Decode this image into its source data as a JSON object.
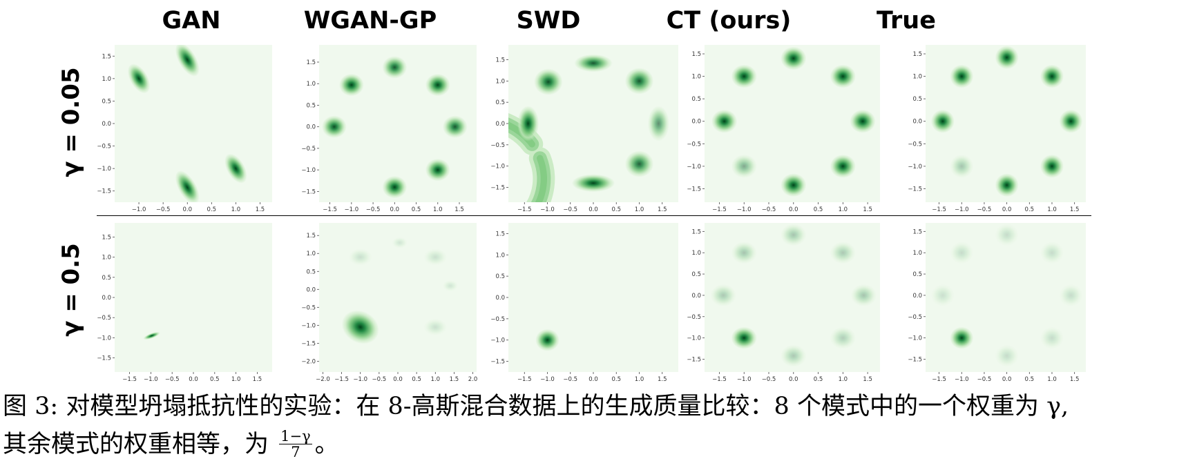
{
  "columns": [
    "GAN",
    "WGAN-GP",
    "SWD",
    "CT (ours)",
    "True"
  ],
  "rows": [
    "γ = 0.05",
    "γ = 0.5"
  ],
  "colors": {
    "background": "#f0f9ee",
    "light": "#c7e9c0",
    "mid": "#74c476",
    "dark": "#238b45",
    "darkest": "#00441b"
  },
  "caption": {
    "label": "图 3:",
    "line1": "对模型坍塌抵抗性的实验：在 8-高斯混合数据上的生成质量比较：8 个模式中的一个权重为 γ,",
    "line2_prefix": "其余模式的权重相等，为",
    "frac_num": "1−γ",
    "frac_den": "7",
    "line2_suffix": "。"
  },
  "chart_data": [
    {
      "type": "heatmap",
      "title": "GAN",
      "row": "γ = 0.05",
      "x_ticks": [
        "−1.0",
        "−0.5",
        "0.0",
        "0.5",
        "1.0",
        "1.5"
      ],
      "y_ticks": [
        "1.5",
        "1.0",
        "0.5",
        "0.0",
        "−0.5",
        "−1.0",
        "−1.5"
      ],
      "xlim": [
        -1.5,
        1.75
      ],
      "ylim": [
        -1.75,
        1.75
      ],
      "modes": [
        {
          "x": -1.0,
          "y": 1.0,
          "w": 1,
          "sx": 0.07,
          "sy": 0.14,
          "rot": -30
        },
        {
          "x": 0.0,
          "y": 1.42,
          "w": 1,
          "sx": 0.07,
          "sy": 0.16,
          "rot": -30
        },
        {
          "x": 1.0,
          "y": -1.0,
          "w": 1,
          "sx": 0.07,
          "sy": 0.14,
          "rot": -30
        },
        {
          "x": 0.0,
          "y": -1.42,
          "w": 1,
          "sx": 0.07,
          "sy": 0.16,
          "rot": -30
        }
      ]
    },
    {
      "type": "heatmap",
      "title": "WGAN-GP",
      "row": "γ = 0.05",
      "x_ticks": [
        "−1.5",
        "−1.0",
        "−0.5",
        "0.0",
        "0.5",
        "1.0",
        "1.5"
      ],
      "y_ticks": [
        "1.5",
        "1.0",
        "0.5",
        "0.0",
        "−0.5",
        "−1.0",
        "−1.5"
      ],
      "xlim": [
        -1.75,
        1.9
      ],
      "ylim": [
        -1.75,
        1.9
      ],
      "modes": [
        {
          "x": 0.0,
          "y": 1.38,
          "w": 0.9,
          "sx": 0.11,
          "sy": 0.1
        },
        {
          "x": -1.0,
          "y": 0.97,
          "w": 1,
          "sx": 0.11,
          "sy": 0.1
        },
        {
          "x": 1.0,
          "y": 0.97,
          "w": 1,
          "sx": 0.11,
          "sy": 0.1
        },
        {
          "x": -1.4,
          "y": 0.0,
          "w": 0.95,
          "sx": 0.11,
          "sy": 0.1
        },
        {
          "x": 1.4,
          "y": 0.0,
          "w": 0.9,
          "sx": 0.11,
          "sy": 0.1
        },
        {
          "x": 1.0,
          "y": -1.0,
          "w": 1,
          "sx": 0.11,
          "sy": 0.1
        },
        {
          "x": 0.0,
          "y": -1.4,
          "w": 1,
          "sx": 0.11,
          "sy": 0.1
        }
      ]
    },
    {
      "type": "heatmap",
      "title": "SWD",
      "row": "γ = 0.05",
      "x_ticks": [
        "−1.5",
        "−1.0",
        "−0.5",
        "0.0",
        "0.5",
        "1.0",
        "1.5"
      ],
      "y_ticks": [
        "1.5",
        "1.0",
        "0.5",
        "0.0",
        "−0.5",
        "−1.0",
        "−1.5"
      ],
      "xlim": [
        -1.85,
        1.85
      ],
      "ylim": [
        -1.85,
        1.85
      ],
      "ring": {
        "r": 1.42,
        "width": 0.2,
        "gap_deg": [
          200,
          215
        ]
      },
      "modes": [
        {
          "x": 0.0,
          "y": 1.42,
          "w": 0.9,
          "sx": 0.16,
          "sy": 0.08
        },
        {
          "x": -0.98,
          "y": 0.98,
          "w": 0.95,
          "sx": 0.12,
          "sy": 0.12
        },
        {
          "x": 1.0,
          "y": 1.0,
          "w": 0.9,
          "sx": 0.12,
          "sy": 0.12
        },
        {
          "x": -1.42,
          "y": 0.0,
          "w": 1,
          "sx": 0.09,
          "sy": 0.16
        },
        {
          "x": 1.42,
          "y": 0.0,
          "w": 0.6,
          "sx": 0.09,
          "sy": 0.16
        },
        {
          "x": 1.0,
          "y": -0.95,
          "w": 0.85,
          "sx": 0.12,
          "sy": 0.12
        },
        {
          "x": 0.0,
          "y": -1.4,
          "w": 1,
          "sx": 0.18,
          "sy": 0.08
        }
      ]
    },
    {
      "type": "heatmap",
      "title": "CT (ours)",
      "row": "γ = 0.05",
      "x_ticks": [
        "−1.5",
        "−1.0",
        "−0.5",
        "0.0",
        "0.5",
        "1.0",
        "1.5"
      ],
      "y_ticks": [
        "1.5",
        "1.0",
        "0.5",
        "0.0",
        "−0.5",
        "−1.0",
        "−1.5"
      ],
      "xlim": [
        -1.8,
        1.75
      ],
      "ylim": [
        -1.8,
        1.7
      ],
      "modes": [
        {
          "x": 0.0,
          "y": 1.4,
          "w": 1,
          "sx": 0.1,
          "sy": 0.1
        },
        {
          "x": -1.0,
          "y": 1.0,
          "w": 1,
          "sx": 0.1,
          "sy": 0.1
        },
        {
          "x": 1.0,
          "y": 1.0,
          "w": 1,
          "sx": 0.1,
          "sy": 0.1
        },
        {
          "x": -1.4,
          "y": 0.0,
          "w": 1,
          "sx": 0.1,
          "sy": 0.1
        },
        {
          "x": 1.4,
          "y": 0.0,
          "w": 1,
          "sx": 0.1,
          "sy": 0.1
        },
        {
          "x": -1.0,
          "y": -1.0,
          "w": 0.45,
          "sx": 0.1,
          "sy": 0.1
        },
        {
          "x": 1.0,
          "y": -1.0,
          "w": 1,
          "sx": 0.1,
          "sy": 0.1
        },
        {
          "x": 0.0,
          "y": -1.42,
          "w": 1,
          "sx": 0.1,
          "sy": 0.1
        }
      ]
    },
    {
      "type": "heatmap",
      "title": "True",
      "row": "γ = 0.05",
      "x_ticks": [
        "−1.5",
        "−1.0",
        "−0.5",
        "0.0",
        "0.5",
        "1.0",
        "1.5"
      ],
      "y_ticks": [
        "1.5",
        "1.0",
        "0.5",
        "0.0",
        "−0.5",
        "−1.0",
        "−1.5"
      ],
      "xlim": [
        -1.8,
        1.75
      ],
      "ylim": [
        -1.8,
        1.7
      ],
      "modes": [
        {
          "x": 0.0,
          "y": 1.42,
          "w": 1,
          "sx": 0.1,
          "sy": 0.1
        },
        {
          "x": -1.0,
          "y": 1.0,
          "w": 1,
          "sx": 0.1,
          "sy": 0.1
        },
        {
          "x": 1.0,
          "y": 1.0,
          "w": 1,
          "sx": 0.1,
          "sy": 0.1
        },
        {
          "x": -1.42,
          "y": 0.0,
          "w": 1,
          "sx": 0.1,
          "sy": 0.1
        },
        {
          "x": 1.42,
          "y": 0.0,
          "w": 1,
          "sx": 0.1,
          "sy": 0.1
        },
        {
          "x": -1.0,
          "y": -1.0,
          "w": 0.3,
          "sx": 0.1,
          "sy": 0.1
        },
        {
          "x": 1.0,
          "y": -1.0,
          "w": 1,
          "sx": 0.1,
          "sy": 0.1
        },
        {
          "x": 0.0,
          "y": -1.42,
          "w": 1,
          "sx": 0.1,
          "sy": 0.1
        }
      ]
    },
    {
      "type": "heatmap",
      "title": "GAN",
      "row": "γ = 0.5",
      "x_ticks": [
        "−1.5",
        "−1.0",
        "−0.5",
        "0.0",
        "0.5",
        "1.0",
        "1.5"
      ],
      "y_ticks": [
        "1.5",
        "1.0",
        "0.5",
        "0.0",
        "−0.5",
        "−1.0",
        "−1.5"
      ],
      "xlim": [
        -1.85,
        1.85
      ],
      "ylim": [
        -1.85,
        1.85
      ],
      "modes": [
        {
          "x": -0.98,
          "y": -0.95,
          "w": 1,
          "sx": 0.08,
          "sy": 0.025,
          "rot": -20
        }
      ]
    },
    {
      "type": "heatmap",
      "title": "WGAN-GP",
      "row": "γ = 0.5",
      "x_ticks": [
        "−2.0",
        "−1.5",
        "−1.0",
        "−0.5",
        "0.0",
        "0.5",
        "1.0",
        "1.5",
        "2.0"
      ],
      "y_ticks": [
        "1.5",
        "1.0",
        "0.5",
        "0.0",
        "−0.5",
        "−1.0",
        "−1.5",
        "−2.0"
      ],
      "xlim": [
        -2.1,
        2.1
      ],
      "ylim": [
        -2.3,
        1.85
      ],
      "modes": [
        {
          "x": -1.0,
          "y": -1.05,
          "w": 1,
          "sx": 0.2,
          "sy": 0.17,
          "rot": 30
        },
        {
          "x": -1.0,
          "y": 0.9,
          "w": 0.15,
          "sx": 0.12,
          "sy": 0.09
        },
        {
          "x": 0.05,
          "y": 1.3,
          "w": 0.12,
          "sx": 0.08,
          "sy": 0.06
        },
        {
          "x": 1.0,
          "y": 0.9,
          "w": 0.15,
          "sx": 0.12,
          "sy": 0.09
        },
        {
          "x": 1.4,
          "y": 0.1,
          "w": 0.12,
          "sx": 0.08,
          "sy": 0.06
        },
        {
          "x": 1.0,
          "y": -1.05,
          "w": 0.15,
          "sx": 0.12,
          "sy": 0.09
        }
      ]
    },
    {
      "type": "heatmap",
      "title": "SWD",
      "row": "γ = 0.5",
      "x_ticks": [
        "−1.5",
        "−1.0",
        "−0.5",
        "0.0",
        "0.5",
        "1.0",
        "1.5"
      ],
      "y_ticks": [
        "1.5",
        "1.0",
        "0.5",
        "0.0",
        "−0.5",
        "−1.0",
        "−1.5"
      ],
      "xlim": [
        -1.85,
        1.85
      ],
      "ylim": [
        -1.75,
        1.75
      ],
      "modes": [
        {
          "x": -1.0,
          "y": -1.0,
          "w": 1,
          "sx": 0.1,
          "sy": 0.1
        }
      ]
    },
    {
      "type": "heatmap",
      "title": "CT (ours)",
      "row": "γ = 0.5",
      "x_ticks": [
        "−1.5",
        "−1.0",
        "−0.5",
        "0.0",
        "0.5",
        "1.0",
        "1.5"
      ],
      "y_ticks": [
        "1.5",
        "1.0",
        "0.5",
        "0.0",
        "−0.5",
        "−1.0",
        "−1.5"
      ],
      "xlim": [
        -1.8,
        1.75
      ],
      "ylim": [
        -1.8,
        1.7
      ],
      "modes": [
        {
          "x": -1.0,
          "y": -1.0,
          "w": 1,
          "sx": 0.1,
          "sy": 0.1
        },
        {
          "x": 0.0,
          "y": 1.42,
          "w": 0.3,
          "sx": 0.1,
          "sy": 0.1
        },
        {
          "x": -1.0,
          "y": 1.0,
          "w": 0.3,
          "sx": 0.1,
          "sy": 0.1
        },
        {
          "x": 1.0,
          "y": 1.0,
          "w": 0.28,
          "sx": 0.1,
          "sy": 0.1
        },
        {
          "x": -1.42,
          "y": 0.0,
          "w": 0.28,
          "sx": 0.1,
          "sy": 0.1
        },
        {
          "x": 1.42,
          "y": 0.0,
          "w": 0.3,
          "sx": 0.1,
          "sy": 0.1
        },
        {
          "x": 1.0,
          "y": -1.0,
          "w": 0.25,
          "sx": 0.1,
          "sy": 0.1
        },
        {
          "x": 0.0,
          "y": -1.42,
          "w": 0.28,
          "sx": 0.1,
          "sy": 0.1
        }
      ]
    },
    {
      "type": "heatmap",
      "title": "True",
      "row": "γ = 0.5",
      "x_ticks": [
        "−1.5",
        "−1.0",
        "−0.5",
        "0.0",
        "0.5",
        "1.0",
        "1.5"
      ],
      "y_ticks": [
        "1.5",
        "1.0",
        "0.5",
        "0.0",
        "−0.5",
        "−1.0",
        "−1.5"
      ],
      "xlim": [
        -1.8,
        1.75
      ],
      "ylim": [
        -1.8,
        1.7
      ],
      "modes": [
        {
          "x": -1.0,
          "y": -1.0,
          "w": 1,
          "sx": 0.1,
          "sy": 0.1
        },
        {
          "x": 0.0,
          "y": 1.42,
          "w": 0.17,
          "sx": 0.1,
          "sy": 0.1
        },
        {
          "x": -1.0,
          "y": 1.0,
          "w": 0.17,
          "sx": 0.1,
          "sy": 0.1
        },
        {
          "x": 1.0,
          "y": 1.0,
          "w": 0.17,
          "sx": 0.1,
          "sy": 0.1
        },
        {
          "x": -1.42,
          "y": 0.0,
          "w": 0.15,
          "sx": 0.1,
          "sy": 0.1
        },
        {
          "x": 1.42,
          "y": 0.0,
          "w": 0.17,
          "sx": 0.1,
          "sy": 0.1
        },
        {
          "x": 1.0,
          "y": -1.0,
          "w": 0.17,
          "sx": 0.1,
          "sy": 0.1
        },
        {
          "x": 0.0,
          "y": -1.42,
          "w": 0.17,
          "sx": 0.1,
          "sy": 0.1
        }
      ]
    }
  ]
}
